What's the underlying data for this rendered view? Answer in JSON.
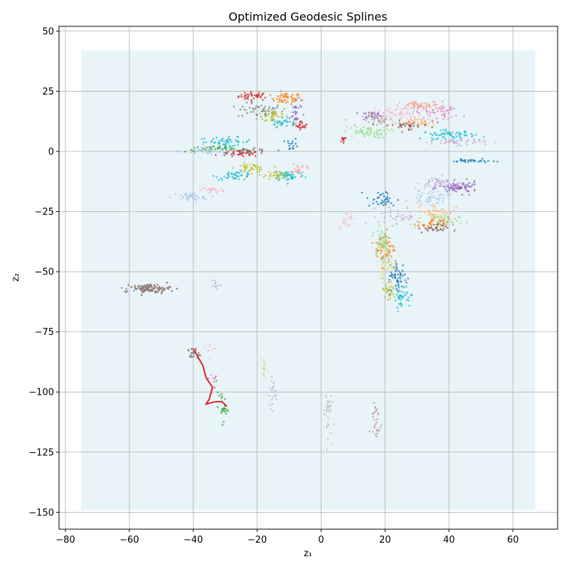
{
  "chart_data": {
    "type": "scatter",
    "title": "Optimized Geodesic Splines",
    "xlabel": "z₁",
    "ylabel": "z₂",
    "xlim": [
      -82,
      74
    ],
    "ylim": [
      -157,
      52
    ],
    "xticks": [
      -80,
      -60,
      -40,
      -20,
      0,
      20,
      40,
      60
    ],
    "yticks": [
      50,
      25,
      0,
      -25,
      -50,
      -75,
      -100,
      -125,
      -150
    ],
    "grid": true,
    "background_grid": {
      "x_range": [
        -75,
        67
      ],
      "y_range": [
        -149,
        42
      ],
      "color": "#add8e6"
    },
    "clusters": [
      {
        "color": "#d62728",
        "center": [
          -21,
          23
        ],
        "spread": [
          4,
          1.5
        ],
        "n": 40
      },
      {
        "color": "#ff7f0e",
        "center": [
          -11,
          22
        ],
        "spread": [
          4,
          2
        ],
        "n": 50
      },
      {
        "color": "#7f7f7f",
        "center": [
          -19,
          17
        ],
        "spread": [
          6,
          2.5
        ],
        "n": 50
      },
      {
        "color": "#bcbd22",
        "center": [
          -15,
          15
        ],
        "spread": [
          4,
          3
        ],
        "n": 40
      },
      {
        "color": "#17becf",
        "center": [
          -12,
          12
        ],
        "spread": [
          3,
          1.5
        ],
        "n": 30
      },
      {
        "color": "#9467bd",
        "center": [
          -8,
          16
        ],
        "spread": [
          1.5,
          5
        ],
        "n": 30
      },
      {
        "color": "#d62728",
        "center": [
          -6,
          11
        ],
        "spread": [
          1.5,
          1.5
        ],
        "n": 20
      },
      {
        "color": "#17becf",
        "center": [
          -30,
          4
        ],
        "spread": [
          7,
          1.5
        ],
        "n": 50
      },
      {
        "color": "#2ca02c",
        "center": [
          -33,
          1
        ],
        "spread": [
          8,
          1
        ],
        "n": 40
      },
      {
        "color": "#aec7e8",
        "center": [
          -35,
          0
        ],
        "spread": [
          8,
          1.5
        ],
        "n": 50
      },
      {
        "color": "#d62728",
        "center": [
          -25,
          -1
        ],
        "spread": [
          5,
          1
        ],
        "n": 30
      },
      {
        "color": "#8c564b",
        "center": [
          -22,
          0
        ],
        "spread": [
          6,
          1
        ],
        "n": 30
      },
      {
        "color": "#1f77b4",
        "center": [
          -9,
          3
        ],
        "spread": [
          1.5,
          2
        ],
        "n": 15
      },
      {
        "color": "#17becf",
        "center": [
          -27,
          -10
        ],
        "spread": [
          5,
          1.5
        ],
        "n": 40
      },
      {
        "color": "#bcbd22",
        "center": [
          -22,
          -7
        ],
        "spread": [
          4,
          1.5
        ],
        "n": 40
      },
      {
        "color": "#aec7e8",
        "center": [
          -41,
          -19
        ],
        "spread": [
          5,
          1.5
        ],
        "n": 40
      },
      {
        "color": "#f7b6d2",
        "center": [
          -34,
          -16
        ],
        "spread": [
          3,
          1
        ],
        "n": 20
      },
      {
        "color": "#17becf",
        "center": [
          -10,
          -10
        ],
        "spread": [
          4,
          2
        ],
        "n": 50
      },
      {
        "color": "#bcbd22",
        "center": [
          -14,
          -10
        ],
        "spread": [
          3,
          1.5
        ],
        "n": 30
      },
      {
        "color": "#ff9896",
        "center": [
          -7,
          -7
        ],
        "spread": [
          2,
          2
        ],
        "n": 20
      },
      {
        "color": "#9467bd",
        "center": [
          16,
          15
        ],
        "spread": [
          3,
          1.5
        ],
        "n": 30
      },
      {
        "color": "#98df8a",
        "center": [
          14,
          8
        ],
        "spread": [
          6,
          2
        ],
        "n": 60
      },
      {
        "color": "#f7b6d2",
        "center": [
          24,
          16
        ],
        "spread": [
          6,
          2.5
        ],
        "n": 60
      },
      {
        "color": "#ff9896",
        "center": [
          32,
          19
        ],
        "spread": [
          6,
          1.5
        ],
        "n": 60
      },
      {
        "color": "#e377c2",
        "center": [
          37,
          16
        ],
        "spread": [
          6,
          2.5
        ],
        "n": 40
      },
      {
        "color": "#8c564b",
        "center": [
          27,
          11
        ],
        "spread": [
          6,
          1.5
        ],
        "n": 40
      },
      {
        "color": "#ffbb78",
        "center": [
          30,
          12
        ],
        "spread": [
          5,
          1.5
        ],
        "n": 40
      },
      {
        "color": "#c49c94",
        "center": [
          19,
          13
        ],
        "spread": [
          5,
          2
        ],
        "n": 40
      },
      {
        "color": "#17becf",
        "center": [
          40,
          7
        ],
        "spread": [
          7,
          1.5
        ],
        "n": 60
      },
      {
        "color": "#c5b0d5",
        "center": [
          43,
          4
        ],
        "spread": [
          7,
          1.2
        ],
        "n": 50
      },
      {
        "color": "#1f77b4",
        "center": [
          47,
          -4
        ],
        "spread": [
          5,
          0.6
        ],
        "n": 30
      },
      {
        "color": "#d62728",
        "center": [
          7,
          5
        ],
        "spread": [
          1,
          1
        ],
        "n": 12
      },
      {
        "color": "#9467bd",
        "center": [
          43,
          -15
        ],
        "spread": [
          5,
          2
        ],
        "n": 80
      },
      {
        "color": "#c5b0d5",
        "center": [
          37,
          -13
        ],
        "spread": [
          5,
          2
        ],
        "n": 50
      },
      {
        "color": "#aec7e8",
        "center": [
          34,
          -19
        ],
        "spread": [
          5,
          2.5
        ],
        "n": 50
      },
      {
        "color": "#ffbb78",
        "center": [
          36,
          -25
        ],
        "spread": [
          5,
          2.5
        ],
        "n": 50
      },
      {
        "color": "#98df8a",
        "center": [
          37,
          -29
        ],
        "spread": [
          5,
          2.5
        ],
        "n": 40
      },
      {
        "color": "#8c564b",
        "center": [
          35,
          -32
        ],
        "spread": [
          4,
          1.5
        ],
        "n": 30
      },
      {
        "color": "#ff7f0e",
        "center": [
          35,
          -30
        ],
        "spread": [
          4,
          2
        ],
        "n": 30
      },
      {
        "color": "#1f77b4",
        "center": [
          19,
          -20
        ],
        "spread": [
          4,
          3
        ],
        "n": 40
      },
      {
        "color": "#c5b0d5",
        "center": [
          24,
          -27
        ],
        "spread": [
          5,
          3
        ],
        "n": 40
      },
      {
        "color": "#ff7f0e",
        "center": [
          20,
          -40
        ],
        "spread": [
          2.5,
          6
        ],
        "n": 60
      },
      {
        "color": "#98df8a",
        "center": [
          19,
          -37
        ],
        "spread": [
          2.5,
          6
        ],
        "n": 50
      },
      {
        "color": "#1f77b4",
        "center": [
          24,
          -52
        ],
        "spread": [
          2.5,
          6
        ],
        "n": 60
      },
      {
        "color": "#dbdb8d",
        "center": [
          21,
          -47
        ],
        "spread": [
          2.5,
          6
        ],
        "n": 50
      },
      {
        "color": "#17becf",
        "center": [
          25,
          -60
        ],
        "spread": [
          2.5,
          4
        ],
        "n": 40
      },
      {
        "color": "#bcbd22",
        "center": [
          21,
          -58
        ],
        "spread": [
          2,
          4
        ],
        "n": 30
      },
      {
        "color": "#f7b6d2",
        "center": [
          8,
          -28
        ],
        "spread": [
          2,
          3
        ],
        "n": 20
      },
      {
        "color": "#8c564b",
        "center": [
          -53,
          -57
        ],
        "spread": [
          5,
          1.5
        ],
        "n": 60
      },
      {
        "color": "#7f7f7f",
        "center": [
          -55,
          -57
        ],
        "spread": [
          5,
          1.5
        ],
        "n": 40
      },
      {
        "color": "#c5b0d5",
        "center": [
          -33,
          -55
        ],
        "spread": [
          1.5,
          2
        ],
        "n": 12
      },
      {
        "color": "#7f7f7f",
        "center": [
          -40,
          -84
        ],
        "spread": [
          1.5,
          2
        ],
        "n": 25
      },
      {
        "color": "#f7b6d2",
        "center": [
          -35,
          -82
        ],
        "spread": [
          1.5,
          3
        ],
        "n": 8
      },
      {
        "color": "#2ca02c",
        "center": [
          -31,
          -106
        ],
        "spread": [
          1.5,
          5
        ],
        "n": 25
      },
      {
        "color": "#c5b0d5",
        "center": [
          -15,
          -102
        ],
        "spread": [
          1,
          6
        ],
        "n": 20
      },
      {
        "color": "#dbdb8d",
        "center": [
          -18,
          -90
        ],
        "spread": [
          0.8,
          5
        ],
        "n": 15
      },
      {
        "color": "#c7c7c7",
        "center": [
          2,
          -108
        ],
        "spread": [
          1,
          9
        ],
        "n": 40
      },
      {
        "color": "#c49c94",
        "center": [
          17,
          -112
        ],
        "spread": [
          1.5,
          8
        ],
        "n": 30
      },
      {
        "color": "#e377c2",
        "center": [
          -34,
          -95
        ],
        "spread": [
          1.5,
          4
        ],
        "n": 10
      }
    ],
    "spline": {
      "color": "#d62728",
      "points": [
        [
          -40,
          -82
        ],
        [
          -37,
          -89
        ],
        [
          -36,
          -94
        ],
        [
          -34,
          -98
        ],
        [
          -35,
          -103
        ],
        [
          -36,
          -105
        ],
        [
          -33,
          -104
        ],
        [
          -31,
          -104
        ],
        [
          -29.5,
          -106
        ]
      ]
    }
  }
}
